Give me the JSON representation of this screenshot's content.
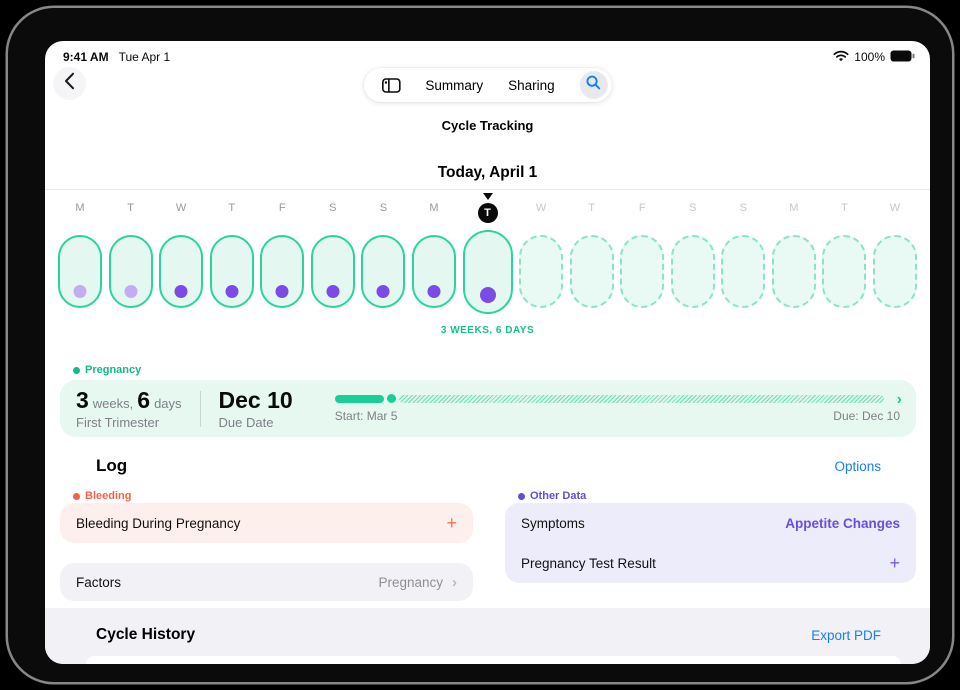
{
  "colors": {
    "teal_accent": "#17cf97",
    "teal_text": "#14b988",
    "purple_dot": "#7c4be6",
    "purple_text": "#6a4ee0",
    "coral": "#f4624d",
    "link_blue": "#157efb",
    "mint_fill": "#e7f8f1",
    "pink_fill": "#fcefec",
    "lavender_fill": "#edecfa",
    "gray_fill": "#f2f2f6"
  },
  "status_bar": {
    "time": "9:41 AM",
    "date": "Tue Apr 1",
    "battery_percent": "100%"
  },
  "nav": {
    "summary_tab": "Summary",
    "sharing_tab": "Sharing"
  },
  "header": {
    "title": "Cycle Tracking",
    "date_heading": "Today, April 1"
  },
  "timeline": {
    "caption": "3 WEEKS, 6 DAYS",
    "days": [
      {
        "letter": "M",
        "state": "past",
        "dot": "faded"
      },
      {
        "letter": "T",
        "state": "past",
        "dot": "faded"
      },
      {
        "letter": "W",
        "state": "past",
        "dot": "solid"
      },
      {
        "letter": "T",
        "state": "past",
        "dot": "solid"
      },
      {
        "letter": "F",
        "state": "past",
        "dot": "solid"
      },
      {
        "letter": "S",
        "state": "past",
        "dot": "solid"
      },
      {
        "letter": "S",
        "state": "past",
        "dot": "solid"
      },
      {
        "letter": "M",
        "state": "past",
        "dot": "solid"
      },
      {
        "letter": "T",
        "state": "today",
        "dot": "solid"
      },
      {
        "letter": "W",
        "state": "future",
        "dot": "none"
      },
      {
        "letter": "T",
        "state": "future",
        "dot": "none"
      },
      {
        "letter": "F",
        "state": "future",
        "dot": "none"
      },
      {
        "letter": "S",
        "state": "future",
        "dot": "none"
      },
      {
        "letter": "S",
        "state": "future",
        "dot": "none"
      },
      {
        "letter": "M",
        "state": "future",
        "dot": "none"
      },
      {
        "letter": "T",
        "state": "future",
        "dot": "none"
      },
      {
        "letter": "W",
        "state": "future",
        "dot": "none"
      }
    ]
  },
  "pregnancy": {
    "section_label": "Pregnancy",
    "weeks_value": "3",
    "weeks_unit": "weeks,",
    "days_value": "6",
    "days_unit": "days",
    "stage": "First Trimester",
    "due_value": "Dec 10",
    "due_caption": "Due Date",
    "progress_start": "Start: Mar 5",
    "progress_due": "Due: Dec 10",
    "progress_percent": 9
  },
  "log": {
    "heading": "Log",
    "options": "Options",
    "bleeding_label": "Bleeding",
    "bleeding_item": "Bleeding During Pregnancy",
    "bleeding_action": "+",
    "factors_label": "Factors",
    "factors_value": "Pregnancy",
    "other_label": "Other Data",
    "other_rows": [
      {
        "label": "Symptoms",
        "value": "Appetite Changes"
      },
      {
        "label": "Pregnancy Test Result",
        "value": "+"
      }
    ]
  },
  "cycle_history": {
    "heading": "Cycle History",
    "export": "Export PDF"
  }
}
